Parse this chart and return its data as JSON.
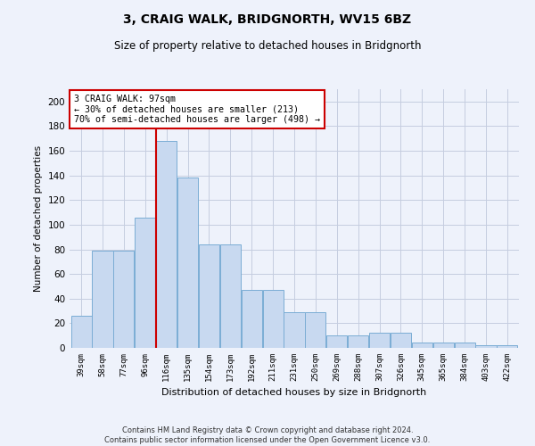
{
  "title": "3, CRAIG WALK, BRIDGNORTH, WV15 6BZ",
  "subtitle": "Size of property relative to detached houses in Bridgnorth",
  "xlabel": "Distribution of detached houses by size in Bridgnorth",
  "ylabel": "Number of detached properties",
  "footer_line1": "Contains HM Land Registry data © Crown copyright and database right 2024.",
  "footer_line2": "Contains public sector information licensed under the Open Government Licence v3.0.",
  "bar_labels": [
    "39sqm",
    "58sqm",
    "77sqm",
    "96sqm",
    "116sqm",
    "135sqm",
    "154sqm",
    "173sqm",
    "192sqm",
    "211sqm",
    "231sqm",
    "250sqm",
    "269sqm",
    "288sqm",
    "307sqm",
    "326sqm",
    "345sqm",
    "365sqm",
    "384sqm",
    "403sqm",
    "422sqm"
  ],
  "bar_values": [
    26,
    79,
    79,
    106,
    168,
    138,
    84,
    84,
    47,
    47,
    29,
    29,
    10,
    10,
    12,
    12,
    4,
    4,
    4,
    2,
    2
  ],
  "bar_color": "#c8d9f0",
  "bar_edge_color": "#7badd4",
  "property_label": "3 CRAIG WALK: 97sqm",
  "annotation_line1": "← 30% of detached houses are smaller (213)",
  "annotation_line2": "70% of semi-detached houses are larger (498) →",
  "vline_color": "#cc0000",
  "annotation_box_color": "#ffffff",
  "annotation_box_edge": "#cc0000",
  "ylim": [
    0,
    210
  ],
  "yticks": [
    0,
    20,
    40,
    60,
    80,
    100,
    120,
    140,
    160,
    180,
    200
  ],
  "bg_color": "#eef2fb",
  "plot_bg_color": "#eef2fb",
  "grid_color": "#c5cde0"
}
